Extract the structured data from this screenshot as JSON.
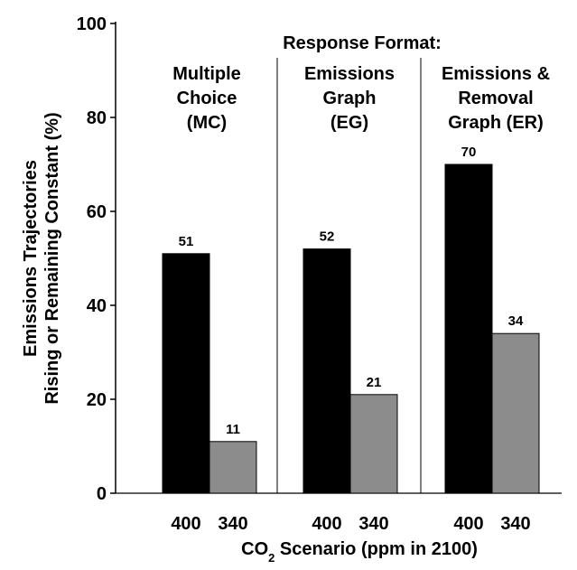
{
  "chart_data": {
    "type": "bar",
    "title": "Response Format:",
    "ylabel_line1": "Emissions Trajectories",
    "ylabel_line2": "Rising or Remaining Constant (%)",
    "xlabel_main": "CO",
    "xlabel_sub": "2",
    "xlabel_rest": " Scenario (ppm in 2100)",
    "ylim": [
      0,
      100
    ],
    "yticks": [
      "0",
      "20",
      "40",
      "60",
      "80",
      "100"
    ],
    "ytick_values": [
      0,
      20,
      40,
      60,
      80,
      100
    ],
    "groups": [
      {
        "label_lines": [
          "Multiple",
          "Choice",
          "(MC)"
        ],
        "categories": [
          "400",
          "340"
        ],
        "values": [
          51,
          11
        ],
        "value_labels": [
          "51",
          "11"
        ]
      },
      {
        "label_lines": [
          "Emissions",
          "Graph",
          "(EG)"
        ],
        "categories": [
          "400",
          "340"
        ],
        "values": [
          52,
          21
        ],
        "value_labels": [
          "52",
          "21"
        ]
      },
      {
        "label_lines": [
          "Emissions &",
          "Removal",
          "Graph (ER)"
        ],
        "categories": [
          "400",
          "340"
        ],
        "values": [
          70,
          34
        ],
        "value_labels": [
          "70",
          "34"
        ]
      }
    ],
    "series_colors": [
      "#000000",
      "#8c8c8c"
    ],
    "grid": false
  }
}
